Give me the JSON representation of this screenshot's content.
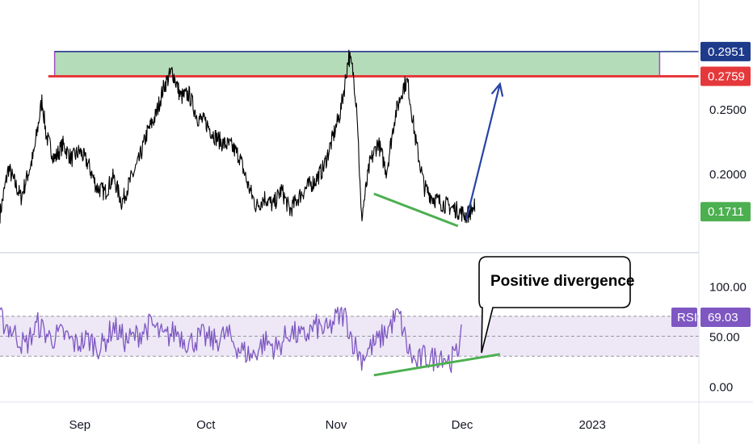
{
  "chart_data": [
    {
      "type": "line",
      "title": "",
      "xlabel": "",
      "ylabel": "",
      "ylim": [
        0.14,
        0.335
      ],
      "price_ticks": [
        0.25,
        0.2
      ],
      "price_tick_labels": [
        "0.2500",
        "0.2000"
      ],
      "x_ticks": [
        {
          "label": "Sep",
          "day": 19
        },
        {
          "label": "Oct",
          "day": 49
        },
        {
          "label": "Nov",
          "day": 80
        },
        {
          "label": "Dec",
          "day": 110
        },
        {
          "label": "2023",
          "day": 141
        }
      ],
      "price_anchors": [
        [
          0,
          0.169
        ],
        [
          2,
          0.205
        ],
        [
          5,
          0.182
        ],
        [
          8,
          0.215
        ],
        [
          10,
          0.258
        ],
        [
          11,
          0.23
        ],
        [
          13,
          0.212
        ],
        [
          15,
          0.223
        ],
        [
          17,
          0.212
        ],
        [
          19,
          0.218
        ],
        [
          21,
          0.208
        ],
        [
          23,
          0.19
        ],
        [
          25,
          0.186
        ],
        [
          27,
          0.198
        ],
        [
          29,
          0.178
        ],
        [
          31,
          0.195
        ],
        [
          33,
          0.21
        ],
        [
          35,
          0.232
        ],
        [
          37,
          0.245
        ],
        [
          39,
          0.268
        ],
        [
          41,
          0.28
        ],
        [
          43,
          0.26
        ],
        [
          45,
          0.262
        ],
        [
          47,
          0.244
        ],
        [
          49,
          0.24
        ],
        [
          51,
          0.23
        ],
        [
          53,
          0.224
        ],
        [
          55,
          0.222
        ],
        [
          57,
          0.214
        ],
        [
          59,
          0.192
        ],
        [
          61,
          0.175
        ],
        [
          63,
          0.182
        ],
        [
          65,
          0.176
        ],
        [
          67,
          0.188
        ],
        [
          69,
          0.172
        ],
        [
          71,
          0.182
        ],
        [
          73,
          0.19
        ],
        [
          75,
          0.195
        ],
        [
          77,
          0.205
        ],
        [
          79,
          0.226
        ],
        [
          81,
          0.248
        ],
        [
          82,
          0.268
        ],
        [
          83,
          0.292
        ],
        [
          84,
          0.28
        ],
        [
          85,
          0.25
        ],
        [
          86,
          0.165
        ],
        [
          88,
          0.208
        ],
        [
          90,
          0.225
        ],
        [
          92,
          0.202
        ],
        [
          94,
          0.245
        ],
        [
          96,
          0.268
        ],
        [
          97,
          0.272
        ],
        [
          99,
          0.225
        ],
        [
          101,
          0.19
        ],
        [
          103,
          0.182
        ],
        [
          105,
          0.178
        ],
        [
          107,
          0.175
        ],
        [
          109,
          0.172
        ],
        [
          111,
          0.168
        ],
        [
          113,
          0.175
        ]
      ],
      "last_price": 0.1711,
      "tags": [
        {
          "label": "0.2951",
          "value": 0.2951,
          "color": "#1e3a8a"
        },
        {
          "label": "0.2759",
          "value": 0.2759,
          "color": "#e5383b"
        },
        {
          "label": "0.1711",
          "value": 0.1711,
          "color": "#4caf50"
        }
      ],
      "zone": {
        "top": 0.2951,
        "bottom": 0.2759,
        "start_day": 13,
        "end_day": 157,
        "fill": "#b5dcb8",
        "border": "#a24fc7"
      },
      "resistance_line": {
        "value": 0.2759,
        "color": "#e5383b"
      },
      "support_line": {
        "x1": 89,
        "y1": 0.185,
        "x2": 109,
        "y2": 0.16,
        "color": "#4caf50"
      },
      "projection_arrow": {
        "x1": 111,
        "y1": 0.165,
        "x2": 119,
        "y2": 0.27,
        "color": "#2744a6"
      }
    },
    {
      "type": "line",
      "title": "",
      "ylim": [
        -15,
        132
      ],
      "rsi_ticks": [
        100,
        50,
        0
      ],
      "rsi_tick_labels": [
        "100.00",
        "50.00",
        "0.00"
      ],
      "overbought": 70,
      "middle": 50,
      "oversold": 30,
      "band_fill": "#ede7f6",
      "line_color": "#7e57c2",
      "rsi_anchors": [
        [
          0,
          68
        ],
        [
          3,
          55
        ],
        [
          6,
          40
        ],
        [
          9,
          62
        ],
        [
          12,
          48
        ],
        [
          15,
          52
        ],
        [
          18,
          42
        ],
        [
          21,
          47
        ],
        [
          24,
          38
        ],
        [
          27,
          60
        ],
        [
          30,
          45
        ],
        [
          33,
          52
        ],
        [
          36,
          62
        ],
        [
          39,
          48
        ],
        [
          42,
          55
        ],
        [
          45,
          43
        ],
        [
          48,
          50
        ],
        [
          51,
          45
        ],
        [
          54,
          52
        ],
        [
          57,
          37
        ],
        [
          60,
          30
        ],
        [
          63,
          45
        ],
        [
          66,
          38
        ],
        [
          69,
          55
        ],
        [
          72,
          48
        ],
        [
          75,
          60
        ],
        [
          78,
          55
        ],
        [
          80,
          68
        ],
        [
          82,
          72
        ],
        [
          84,
          45
        ],
        [
          86,
          28
        ],
        [
          88,
          38
        ],
        [
          90,
          45
        ],
        [
          92,
          55
        ],
        [
          94,
          68
        ],
        [
          95,
          72
        ],
        [
          97,
          38
        ],
        [
          99,
          22
        ],
        [
          101,
          30
        ],
        [
          103,
          27
        ],
        [
          105,
          33
        ],
        [
          107,
          25
        ],
        [
          109,
          33
        ],
        [
          110,
          69
        ]
      ],
      "rsi_label": "RSI",
      "rsi_value": "69.03",
      "divergence_line": {
        "x1": 89,
        "y1": 11,
        "x2": 119,
        "y2": 32,
        "color": "#4caf50"
      },
      "annotation": "Positive divergence"
    }
  ],
  "colors": {
    "grid": "#d1d4dc",
    "price_line": "#000000",
    "rsi_tag": "#7e57c2",
    "divider": "#e0e3eb"
  }
}
